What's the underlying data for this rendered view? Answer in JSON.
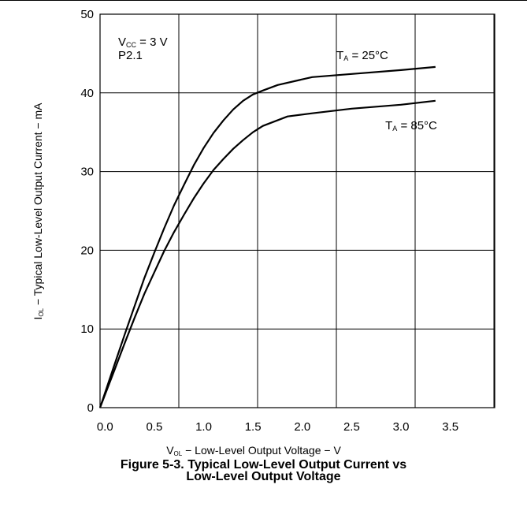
{
  "figure": {
    "caption_line1": "Figure 5-3. Typical Low-Level Output Current vs",
    "caption_line2": "Low-Level Output Voltage"
  },
  "chart_data": {
    "type": "line",
    "title": "",
    "xlabel": {
      "main": "V",
      "sub": "OL",
      "rest": " − Low-Level Output Voltage − V"
    },
    "ylabel": {
      "main": "I",
      "sub": "OL",
      "rest": " − Typical Low-Level Output Current − mA"
    },
    "xlim": [
      -0.05,
      3.95
    ],
    "ylim": [
      0,
      50
    ],
    "x_ticks": [
      "0.0",
      "0.5",
      "1.0",
      "1.5",
      "2.0",
      "2.5",
      "3.0",
      "3.5"
    ],
    "x_tick_values": [
      0.0,
      0.5,
      1.0,
      1.5,
      2.0,
      2.5,
      3.0,
      3.5
    ],
    "y_ticks": [
      "0",
      "10",
      "20",
      "30",
      "40",
      "50"
    ],
    "y_tick_values": [
      0,
      10,
      20,
      30,
      40,
      50
    ],
    "grid": true,
    "conditions": {
      "vcc_main": "V",
      "vcc_sub": "CC",
      "vcc_rest": " = 3 V",
      "pin": "P2.1"
    },
    "series": [
      {
        "name": "T_A = 25°C",
        "label_main": "T",
        "label_sub": "A",
        "label_rest": " = 25°C",
        "x": [
          -0.05,
          0.1,
          0.2,
          0.3,
          0.4,
          0.5,
          0.6,
          0.7,
          0.8,
          0.9,
          1.0,
          1.1,
          1.2,
          1.3,
          1.4,
          1.5,
          1.6,
          1.75,
          2.1,
          2.5,
          3.0,
          3.35
        ],
        "y": [
          0,
          5.6,
          9.3,
          12.9,
          16.5,
          19.7,
          22.8,
          25.7,
          28.3,
          30.8,
          33.0,
          34.9,
          36.5,
          37.9,
          39.0,
          39.8,
          40.3,
          41.0,
          42.0,
          42.4,
          42.9,
          43.3
        ]
      },
      {
        "name": "T_A = 85°C",
        "label_main": "T",
        "label_sub": "A",
        "label_rest": " = 85°C",
        "x": [
          -0.05,
          0.1,
          0.2,
          0.3,
          0.4,
          0.5,
          0.6,
          0.7,
          0.8,
          0.9,
          1.0,
          1.1,
          1.2,
          1.3,
          1.4,
          1.5,
          1.6,
          1.85,
          2.1,
          2.5,
          3.0,
          3.35
        ],
        "y": [
          0,
          4.9,
          8.2,
          11.4,
          14.5,
          17.2,
          19.9,
          22.3,
          24.5,
          26.6,
          28.5,
          30.2,
          31.6,
          32.9,
          34.0,
          35.0,
          35.8,
          37.0,
          37.4,
          38.0,
          38.5,
          39.0
        ]
      }
    ]
  }
}
